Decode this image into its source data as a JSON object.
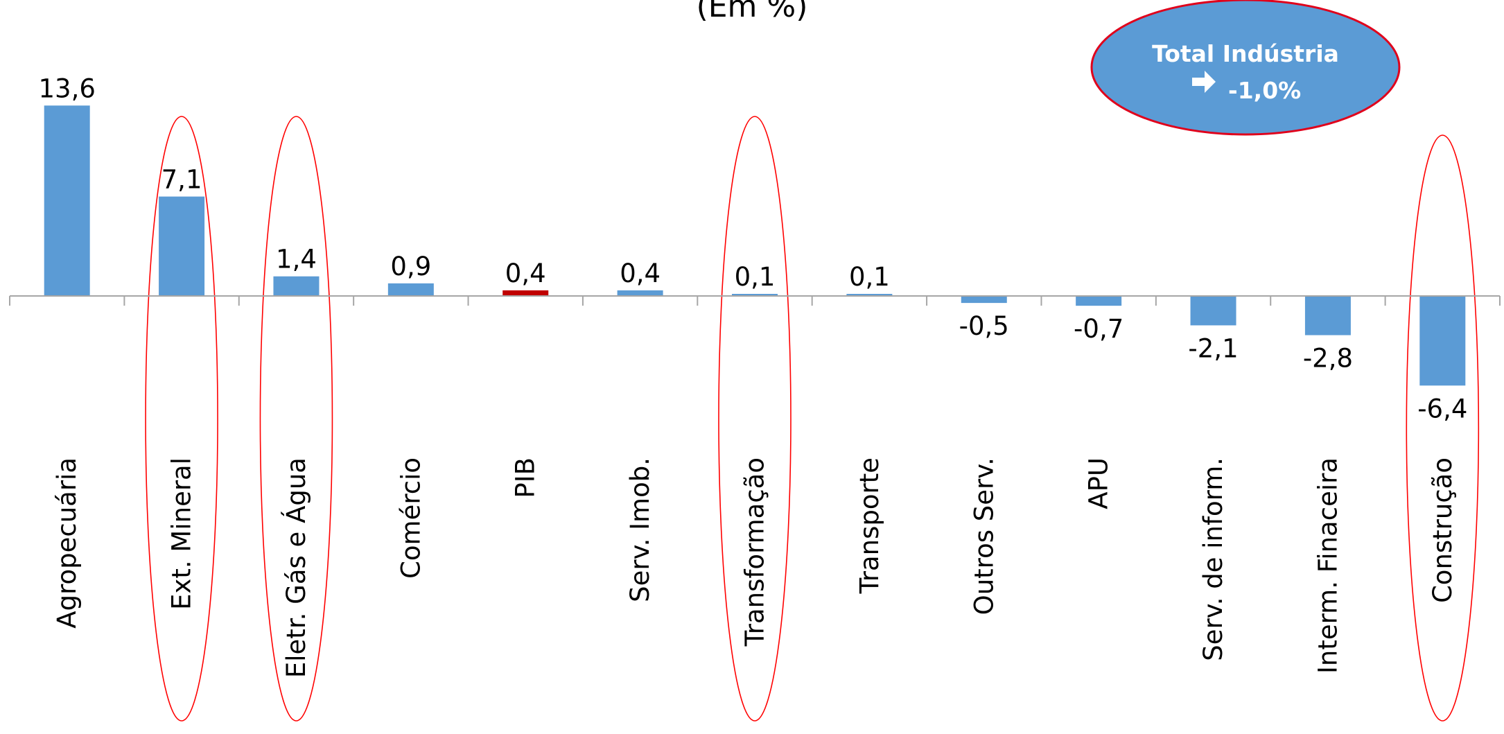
{
  "chart_data": {
    "type": "bar",
    "subtitle": "(Em %)",
    "categories": [
      "Agropecuária",
      "Ext. Mineral",
      "Eletr. Gás e Água",
      "Comércio",
      "PIB",
      "Serv. Imob.",
      "Transformação",
      "Transporte",
      "Outros Serv.",
      "APU",
      "Serv. de inform.",
      "Interm. Finaceira",
      "Construção"
    ],
    "values": [
      13.6,
      7.1,
      1.4,
      0.9,
      0.4,
      0.4,
      0.1,
      0.1,
      -0.5,
      -0.7,
      -2.1,
      -2.8,
      -6.4
    ],
    "value_labels": [
      "13,6",
      "7,1",
      "1,4",
      "0,9",
      "0,4",
      "0,4",
      "0,1",
      "0,1",
      "-0,5",
      "-0,7",
      "-2,1",
      "-2,8",
      "-6,4"
    ],
    "highlighted_categories": [
      "Ext. Mineral",
      "Eletr. Gás e Água",
      "Transformação",
      "Construção"
    ],
    "colors": {
      "bar": "#5b9bd5",
      "bar_highlight": "#c00000",
      "highlight_ring": "#ff0000",
      "callout_fill": "#5b9bd5",
      "callout_border": "#e0001b"
    },
    "bar_highlight_category": "PIB",
    "callout": {
      "line1": "Total Indústria",
      "line2": "-1,0%",
      "arrow": "right-arrow-icon"
    },
    "gridlines": false,
    "legend": "none"
  }
}
